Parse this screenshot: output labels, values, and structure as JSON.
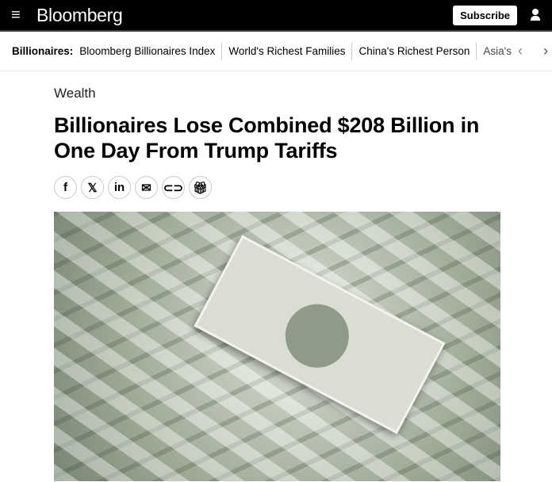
{
  "header": {
    "brand": "Bloomberg",
    "subscribe": "Subscribe"
  },
  "subnav": {
    "label": "Billionaires:",
    "items": [
      "Bloomberg Billionaires Index",
      "World's Richest Families",
      "China's Richest Person"
    ],
    "partial": "Asia's"
  },
  "article": {
    "kicker": "Wealth",
    "headline": "Billionaires Lose Combined $208 Billion in One Day From Trump Tariffs"
  },
  "share": [
    "facebook",
    "x",
    "linkedin",
    "email",
    "link",
    "gift"
  ]
}
